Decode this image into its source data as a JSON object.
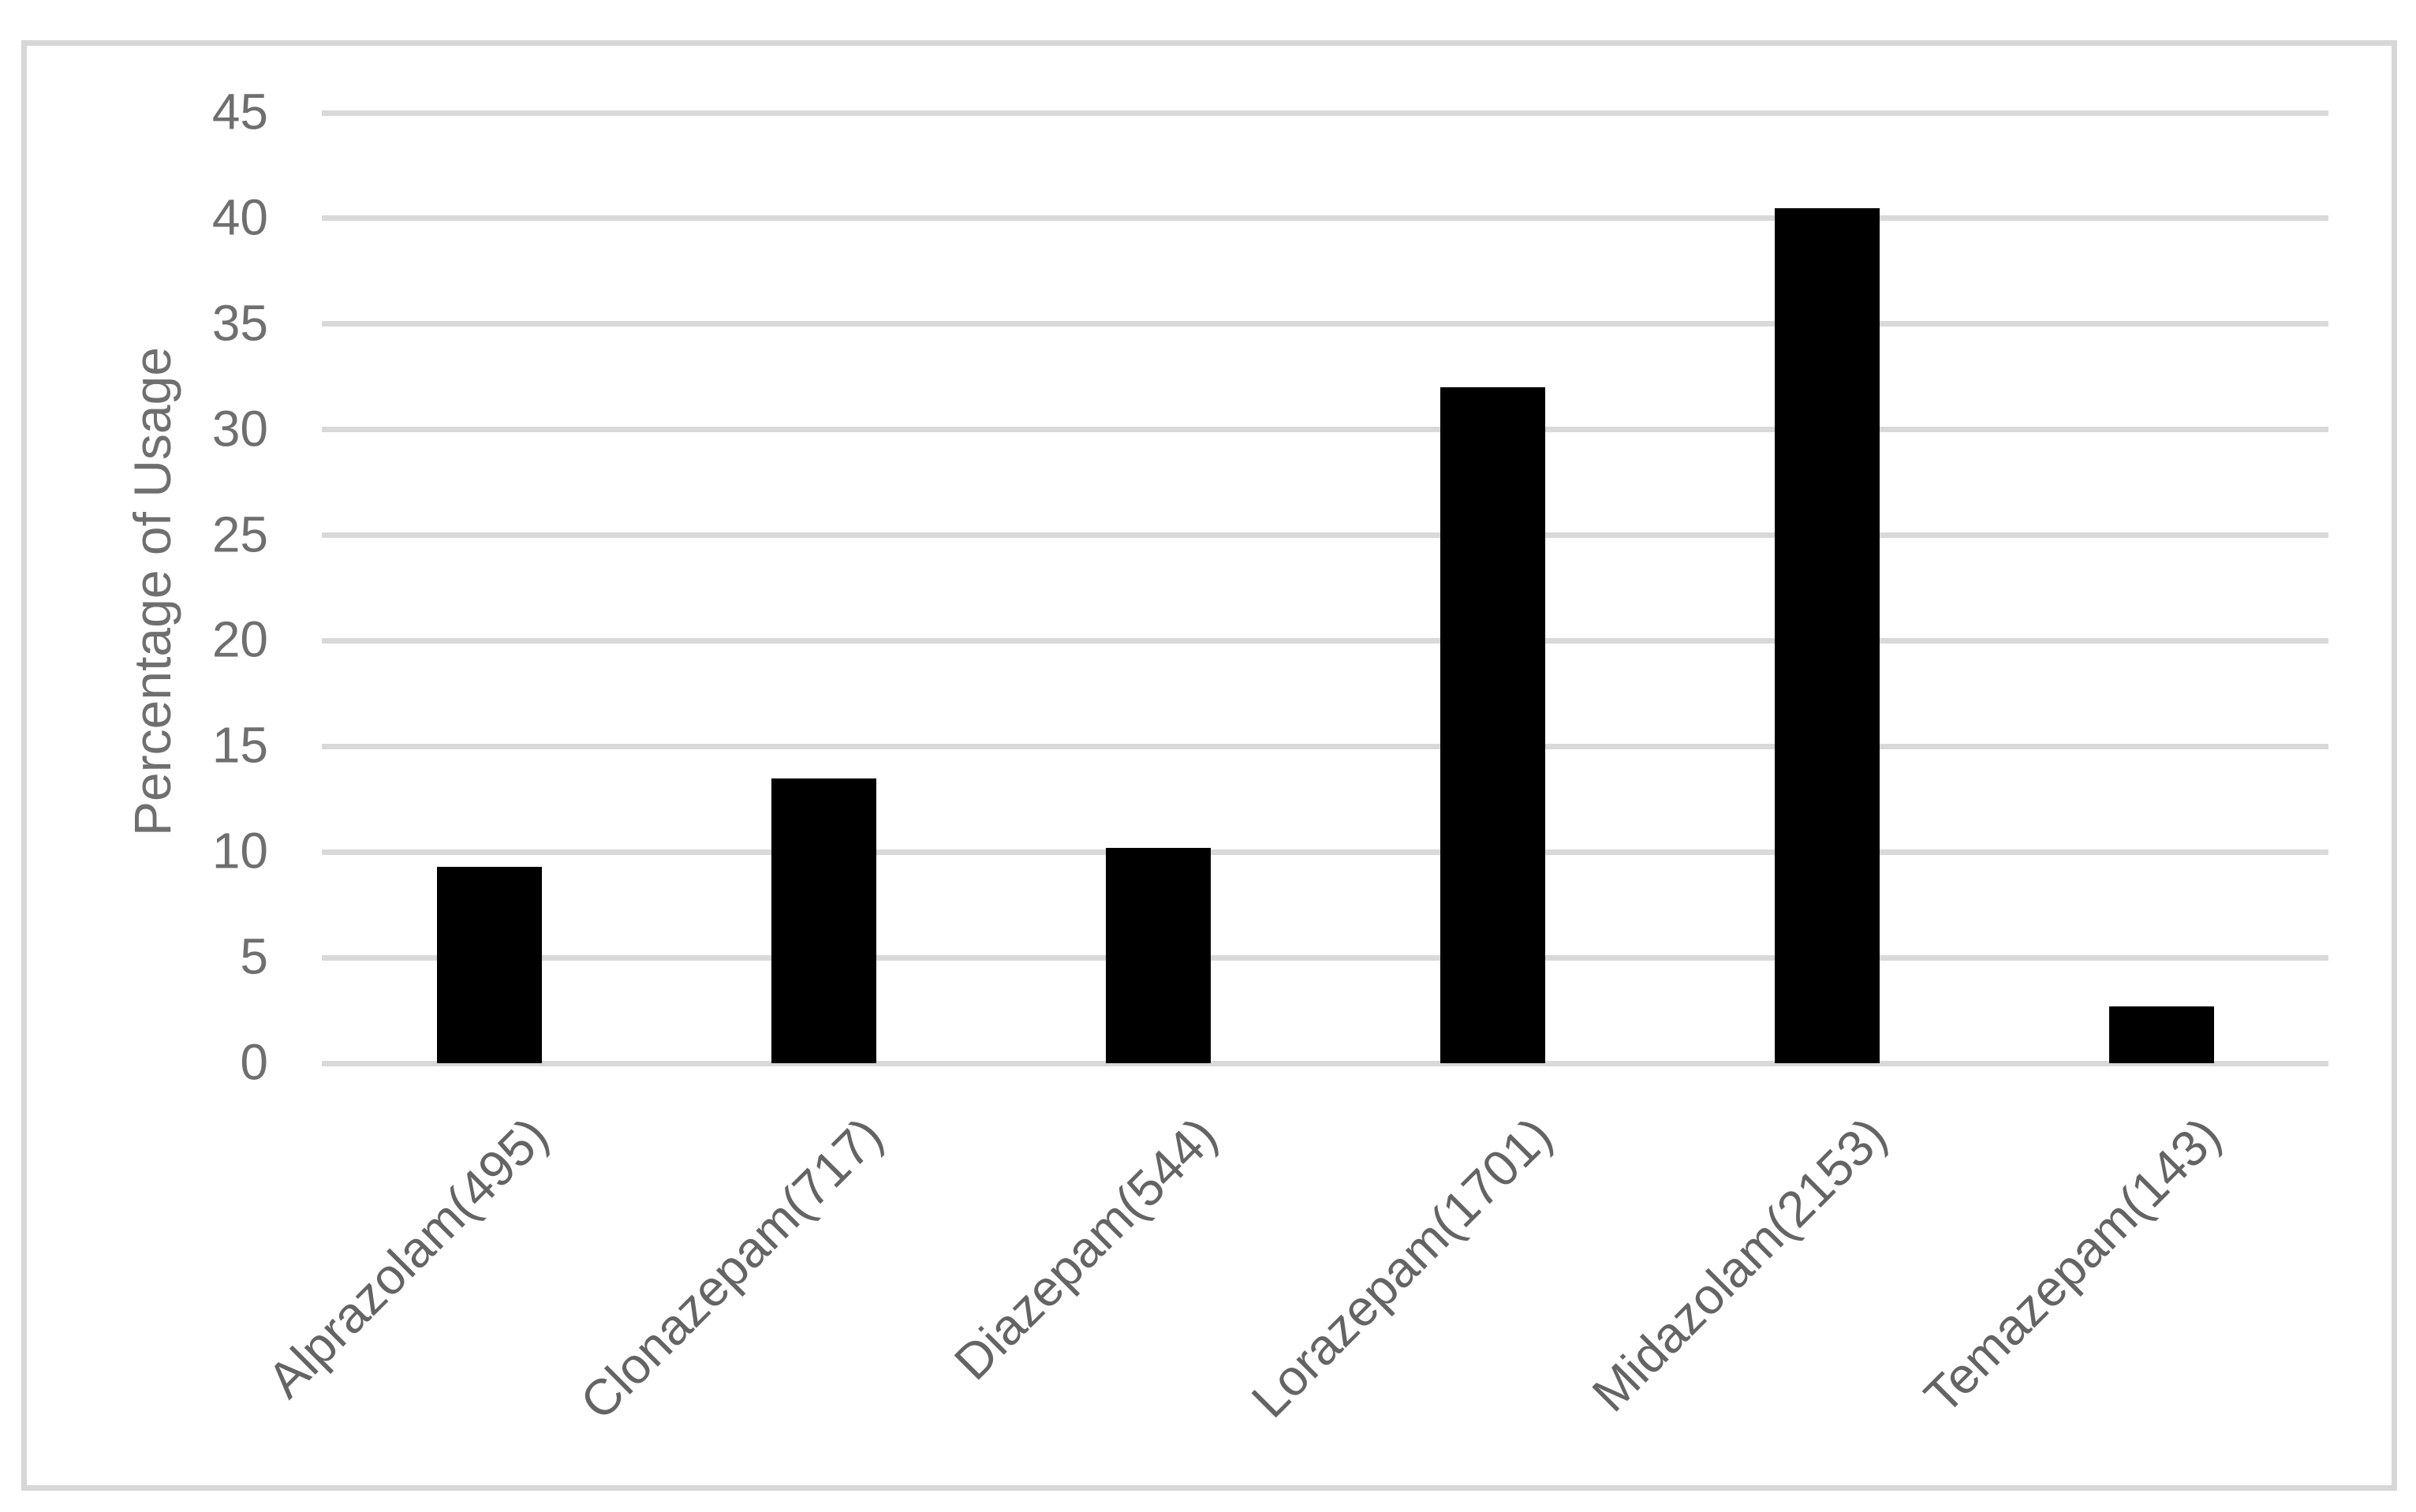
{
  "figure": {
    "background_color": "#ffffff",
    "border_color": "#d7d7d7",
    "title": ""
  },
  "chart_data": {
    "type": "bar",
    "title": "",
    "xlabel": "",
    "ylabel": "Percentage of Usage",
    "categories": [
      "Alprazolam(495)",
      "Clonazepam(717)",
      "Diazepam(544)",
      "Lorazepam(1701)",
      "Midazolam(2153)",
      "Temazepam(143)"
    ],
    "values": [
      9.3,
      13.5,
      10.2,
      32,
      40.5,
      2.7
    ],
    "ylim": [
      0,
      45
    ],
    "ytick_step": 5,
    "yticks": [
      0,
      5,
      10,
      15,
      20,
      25,
      30,
      35,
      40,
      45
    ],
    "grid": true,
    "legend": "none",
    "x_label_rotation_deg": 45,
    "bar_color": "#000000",
    "gridline_color": "#d9d9d9",
    "axis_text_color": "#6f6f6f"
  }
}
